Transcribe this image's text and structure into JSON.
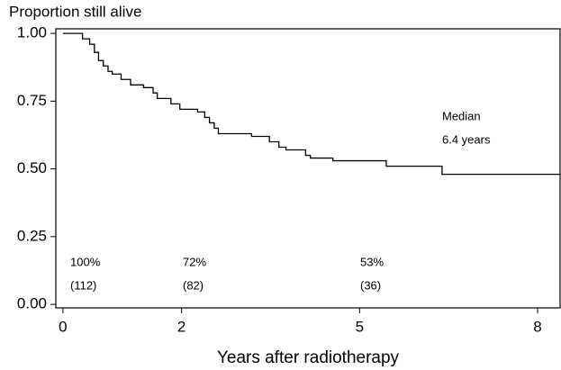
{
  "chart_data": {
    "type": "line",
    "step": "post",
    "ylabel": "Proportion still alive",
    "xlabel": "Years after radiotherapy",
    "x": [
      0,
      0.33,
      0.45,
      0.53,
      0.6,
      0.68,
      0.76,
      0.83,
      0.98,
      1.14,
      1.36,
      1.52,
      1.59,
      1.82,
      1.97,
      2.27,
      2.39,
      2.47,
      2.55,
      2.62,
      3.18,
      3.48,
      3.64,
      3.76,
      4.09,
      4.17,
      4.55,
      5.45,
      6.39,
      8.38
    ],
    "values": [
      1.0,
      0.98,
      0.96,
      0.93,
      0.9,
      0.88,
      0.86,
      0.85,
      0.83,
      0.81,
      0.8,
      0.78,
      0.76,
      0.74,
      0.72,
      0.71,
      0.69,
      0.67,
      0.65,
      0.63,
      0.62,
      0.6,
      0.58,
      0.57,
      0.55,
      0.54,
      0.53,
      0.51,
      0.48,
      0.48
    ],
    "color": "#000000",
    "xlim": [
      -0.12,
      8.38
    ],
    "ylim": [
      -0.013,
      1.017
    ],
    "xticks": [
      0,
      2,
      5,
      8
    ],
    "yticks": [
      {
        "value": 0,
        "label": "0.00"
      },
      {
        "value": 0.25,
        "label": "0.25"
      },
      {
        "value": 0.5,
        "label": "0.50"
      },
      {
        "value": 0.75,
        "label": "0.75"
      },
      {
        "value": 1,
        "label": "1.00"
      }
    ],
    "annotations": [
      "Median",
      "6.4 years",
      "100%",
      "(112)",
      "72%",
      "(82)",
      "53%",
      "(36)"
    ]
  }
}
